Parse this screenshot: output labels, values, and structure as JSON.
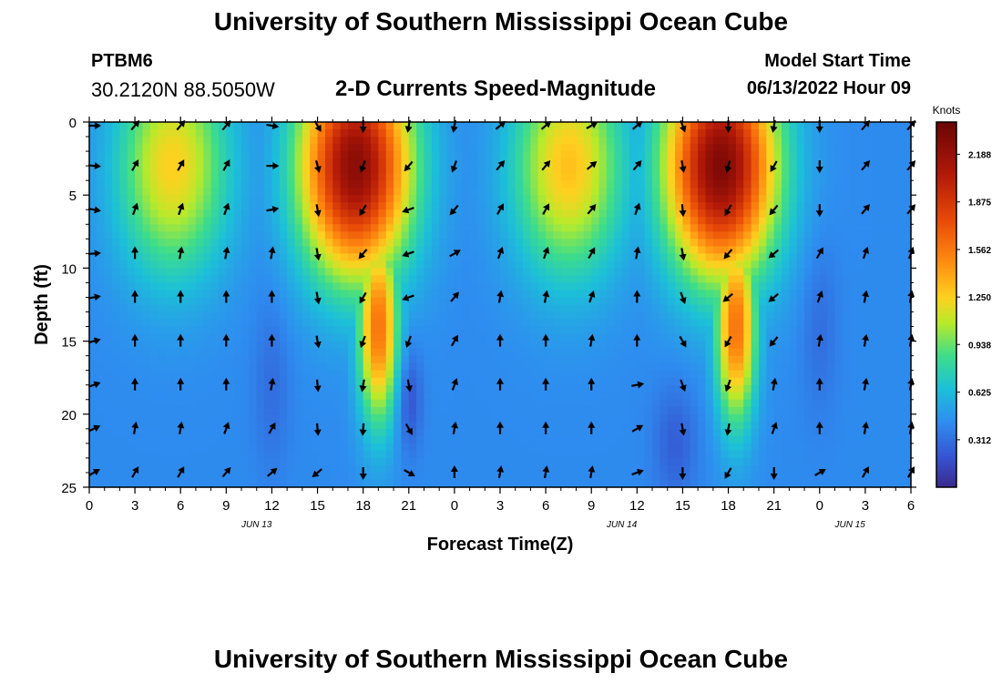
{
  "header": {
    "title": "University of Southern Mississippi Ocean Cube",
    "station_id": "PTBM6",
    "coordinates": "30.2120N  88.5050W",
    "subtitle": "2-D Currents Speed-Magnitude",
    "model_start_label": "Model Start Time",
    "model_start_value": "06/13/2022 Hour 09"
  },
  "footer": {
    "title": "University of Southern Mississippi Ocean Cube"
  },
  "chart_data": {
    "type": "heatmap",
    "title": "2-D Currents Speed-Magnitude",
    "xlabel": "Forecast Time(Z)",
    "ylabel": "Depth (ft)",
    "x_range_hours": [
      0,
      54
    ],
    "y_range_ft": [
      0,
      25
    ],
    "x_tick_labels": [
      "0",
      "3",
      "6",
      "9",
      "12",
      "15",
      "18",
      "21",
      "0",
      "3",
      "6",
      "9",
      "12",
      "15",
      "18",
      "21",
      "0",
      "3",
      "6"
    ],
    "y_tick_labels": [
      "0",
      "5",
      "10",
      "15",
      "20",
      "25"
    ],
    "date_labels": [
      {
        "hour": 11,
        "label": "JUN 13"
      },
      {
        "hour": 35,
        "label": "JUN 14"
      },
      {
        "hour": 50,
        "label": "JUN 15"
      }
    ],
    "colorbar": {
      "unit": "Knots",
      "min": 0,
      "max": 2.4,
      "ticks": [
        "2.188",
        "1.875",
        "1.562",
        "1.250",
        "0.938",
        "0.625",
        "0.312"
      ]
    },
    "speed_cores": [
      {
        "hour": 5.5,
        "depth": 3,
        "peak": 1.25
      },
      {
        "hour": 17.5,
        "depth": 3,
        "peak": 2.25
      },
      {
        "hour": 19,
        "depth": 14,
        "peak": 1.6
      },
      {
        "hour": 31.5,
        "depth": 3,
        "peak": 1.3
      },
      {
        "hour": 41.5,
        "depth": 3,
        "peak": 2.3
      },
      {
        "hour": 42.5,
        "depth": 14,
        "peak": 1.6
      }
    ],
    "arrow_columns": [
      {
        "hour": 0.3,
        "angles": [
          90,
          95,
          100,
          85,
          80,
          75,
          70,
          65,
          60
        ]
      },
      {
        "hour": 3,
        "angles": [
          40,
          30,
          20,
          0,
          0,
          0,
          0,
          10,
          30
        ]
      },
      {
        "hour": 6,
        "angles": [
          40,
          30,
          20,
          10,
          0,
          0,
          0,
          10,
          30
        ]
      },
      {
        "hour": 9,
        "angles": [
          40,
          30,
          20,
          10,
          0,
          0,
          0,
          20,
          40
        ]
      },
      {
        "hour": 12,
        "angles": [
          100,
          90,
          80,
          10,
          0,
          0,
          10,
          30,
          50
        ]
      },
      {
        "hour": 15,
        "angles": [
          150,
          165,
          170,
          170,
          170,
          170,
          175,
          175,
          230
        ]
      },
      {
        "hour": 18,
        "angles": [
          180,
          200,
          210,
          220,
          210,
          200,
          190,
          185,
          180
        ]
      },
      {
        "hour": 21,
        "angles": [
          190,
          220,
          250,
          250,
          250,
          200,
          170,
          150,
          120
        ]
      },
      {
        "hour": 24,
        "angles": [
          190,
          200,
          220,
          60,
          40,
          30,
          20,
          10,
          0
        ]
      },
      {
        "hour": 27,
        "angles": [
          50,
          40,
          30,
          20,
          10,
          0,
          0,
          0,
          10
        ]
      },
      {
        "hour": 30,
        "angles": [
          50,
          40,
          30,
          20,
          10,
          0,
          0,
          0,
          10
        ]
      },
      {
        "hour": 33,
        "angles": [
          60,
          50,
          40,
          30,
          20,
          10,
          0,
          0,
          10
        ]
      },
      {
        "hour": 36,
        "angles": [
          50,
          40,
          20,
          10,
          0,
          0,
          80,
          60,
          70
        ]
      },
      {
        "hour": 39,
        "angles": [
          160,
          170,
          175,
          170,
          160,
          150,
          160,
          170,
          180
        ]
      },
      {
        "hour": 42,
        "angles": [
          180,
          195,
          210,
          220,
          230,
          210,
          200,
          190,
          210
        ]
      },
      {
        "hour": 45,
        "angles": [
          190,
          210,
          220,
          230,
          230,
          220,
          10,
          20,
          180
        ]
      },
      {
        "hour": 48,
        "angles": [
          180,
          180,
          180,
          30,
          20,
          10,
          0,
          0,
          60
        ]
      },
      {
        "hour": 51,
        "angles": [
          40,
          40,
          40,
          20,
          10,
          10,
          10,
          10,
          30
        ]
      },
      {
        "hour": 54,
        "angles": [
          40,
          40,
          40,
          20,
          10,
          10,
          10,
          10,
          30
        ]
      }
    ],
    "arrow_depths": [
      0,
      3,
      6,
      9,
      12,
      15,
      18,
      21,
      24
    ]
  }
}
